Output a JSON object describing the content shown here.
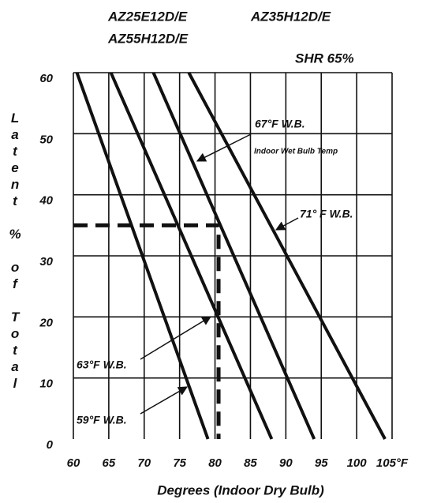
{
  "chart_data": {
    "type": "line",
    "header_labels": [
      "AZ25E12D/E",
      "AZ55H12D/E",
      "AZ35H12D/E",
      "SHR 65%"
    ],
    "y_label": "Latent % of Total",
    "x_label": "Degrees (Indoor Dry Bulb)",
    "annotation": "Indoor Wet Bulb Temp",
    "xlim": [
      60,
      105
    ],
    "xticks": [
      60,
      65,
      70,
      75,
      80,
      85,
      90,
      95,
      100,
      {
        "value": 105,
        "label": "105°F"
      }
    ],
    "ylim": [
      0,
      60
    ],
    "yticks": [
      0,
      10,
      20,
      30,
      40,
      50,
      60
    ],
    "grid": true,
    "series": [
      {
        "name": "59°F W.B.",
        "color": "#111111",
        "x": [
          60.5,
          79
        ],
        "values": [
          60,
          0
        ]
      },
      {
        "name": "63°F W.B.",
        "color": "#111111",
        "x": [
          65.3,
          88
        ],
        "values": [
          60,
          0
        ]
      },
      {
        "name": "67°F W.B.",
        "color": "#111111",
        "x": [
          71.3,
          94
        ],
        "values": [
          60,
          0
        ]
      },
      {
        "name": "71° F W.B.",
        "color": "#111111",
        "x": [
          76.3,
          104
        ],
        "values": [
          60,
          0
        ]
      }
    ],
    "reference": {
      "x": [
        60,
        80.5,
        80.5
      ],
      "values": [
        35,
        35,
        0
      ]
    }
  }
}
